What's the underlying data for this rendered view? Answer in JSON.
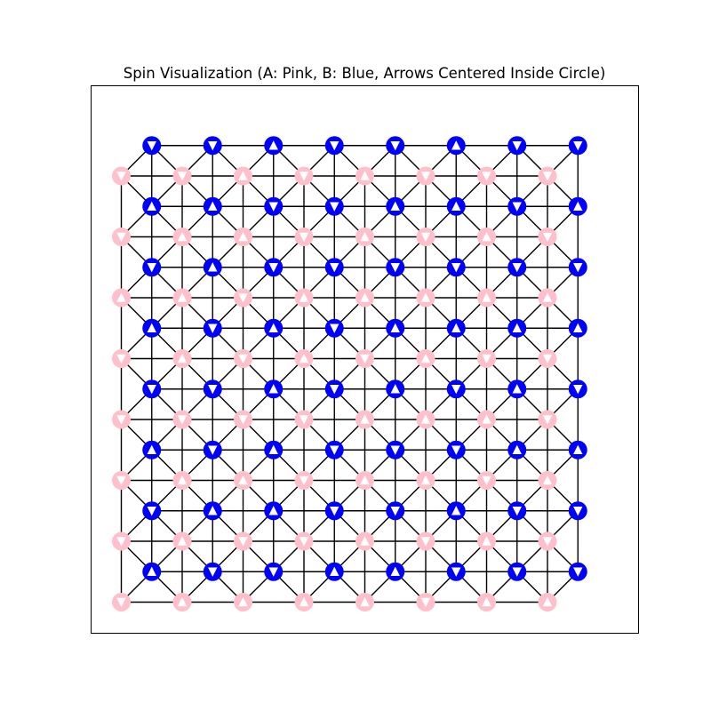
{
  "chart_data": {
    "type": "scatter",
    "title": "Spin Visualization (A: Pink, B: Blue, Arrows Centered Inside Circle)",
    "xlabel": "",
    "ylabel": "",
    "axes_visible": false,
    "grid": false,
    "legend": "none",
    "lattice": {
      "rows": 8,
      "cols": 8,
      "bonds": "square lattice within each sublattice plus A-B diagonals"
    },
    "series": [
      {
        "name": "A",
        "color": "#ffc0cb",
        "spins": [
          [
            "down",
            "down",
            "up",
            "down",
            "up",
            "down",
            "down",
            "down"
          ],
          [
            "down",
            "up",
            "up",
            "down",
            "up",
            "down",
            "up",
            "down"
          ],
          [
            "up",
            "up",
            "down",
            "up",
            "up",
            "up",
            "up",
            "up"
          ],
          [
            "down",
            "up",
            "down",
            "up",
            "down",
            "up",
            "down",
            "down"
          ],
          [
            "down",
            "down",
            "down",
            "down",
            "up",
            "up",
            "up",
            "down"
          ],
          [
            "down",
            "up",
            "up",
            "down",
            "up",
            "up",
            "down",
            "up"
          ],
          [
            "down",
            "up",
            "down",
            "down",
            "up",
            "down",
            "up",
            "down"
          ],
          [
            "down",
            "up",
            "up",
            "up",
            "up",
            "down",
            "up",
            "up"
          ]
        ]
      },
      {
        "name": "B",
        "color": "#0000ff",
        "spins": [
          [
            "down",
            "down",
            "up",
            "down",
            "down",
            "up",
            "down",
            "down"
          ],
          [
            "up",
            "up",
            "down",
            "down",
            "up",
            "up",
            "down",
            "up"
          ],
          [
            "down",
            "up",
            "down",
            "down",
            "down",
            "down",
            "down",
            "down"
          ],
          [
            "up",
            "down",
            "up",
            "down",
            "up",
            "up",
            "up",
            "up"
          ],
          [
            "down",
            "down",
            "up",
            "down",
            "up",
            "down",
            "up",
            "down"
          ],
          [
            "up",
            "down",
            "up",
            "down",
            "down",
            "down",
            "up",
            "up"
          ],
          [
            "down",
            "up",
            "up",
            "down",
            "down",
            "up",
            "down",
            "down"
          ],
          [
            "up",
            "down",
            "down",
            "up",
            "up",
            "down",
            "down",
            "down"
          ]
        ]
      }
    ]
  }
}
